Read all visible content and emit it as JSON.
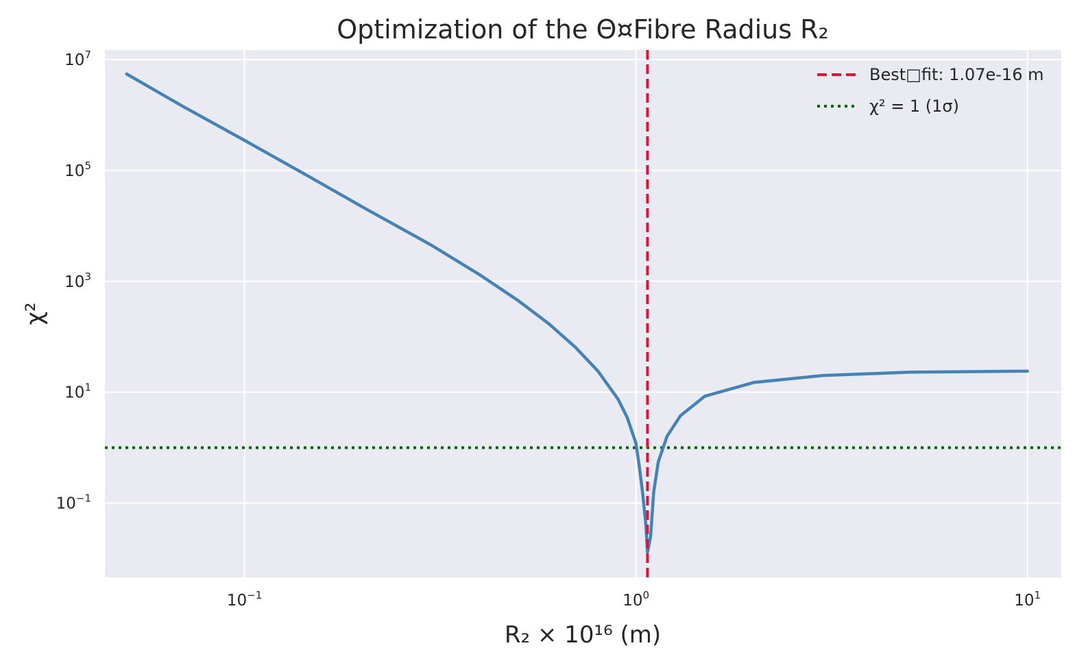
{
  "chart_data": {
    "type": "line",
    "title": "Optimization of the Θ¤Fibre Radius R₂",
    "xlabel": "R₂ × 10¹⁶ (m)",
    "ylabel": "χ²",
    "xscale": "log",
    "yscale": "log",
    "xlim": [
      0.044,
      12.2
    ],
    "ylim": [
      0.00457,
      14900000
    ],
    "grid": true,
    "legend_position": "top-right",
    "x_ticks": [
      {
        "base": "10",
        "exp": "−1",
        "value": 0.1
      },
      {
        "base": "10",
        "exp": "0",
        "value": 1
      },
      {
        "base": "10",
        "exp": "1",
        "value": 10
      }
    ],
    "y_ticks": [
      {
        "base": "10",
        "exp": "−1",
        "value": 0.1
      },
      {
        "base": "10",
        "exp": "1",
        "value": 10
      },
      {
        "base": "10",
        "exp": "3",
        "value": 1000
      },
      {
        "base": "10",
        "exp": "5",
        "value": 100000
      },
      {
        "base": "10",
        "exp": "7",
        "value": 10000000
      }
    ],
    "series": [
      {
        "color": "#4682b4",
        "x": [
          0.05,
          0.07,
          0.1,
          0.15,
          0.2,
          0.3,
          0.4,
          0.5,
          0.6,
          0.7,
          0.8,
          0.9,
          0.95,
          1.0,
          1.02,
          1.04,
          1.06,
          1.07,
          1.09,
          1.11,
          1.14,
          1.2,
          1.3,
          1.5,
          2.0,
          3.0,
          5.0,
          10.0
        ],
        "y": [
          5500000,
          1400000,
          350000,
          70000,
          22000,
          4500,
          1300,
          450,
          170,
          65,
          24,
          7.5,
          3.5,
          1.2,
          0.45,
          0.15,
          0.04,
          0.013,
          0.025,
          0.16,
          0.55,
          1.6,
          3.8,
          8.5,
          15,
          20,
          23,
          24
        ]
      }
    ],
    "annotations": [
      {
        "kind": "vline",
        "x": 1.07,
        "color": "#dc143c",
        "style": "dashed",
        "legend": "Best□fit: 1.07e-16 m"
      },
      {
        "kind": "hline",
        "y": 1,
        "color": "#006400",
        "style": "dotted",
        "legend": "χ² = 1 (1σ)"
      }
    ]
  }
}
